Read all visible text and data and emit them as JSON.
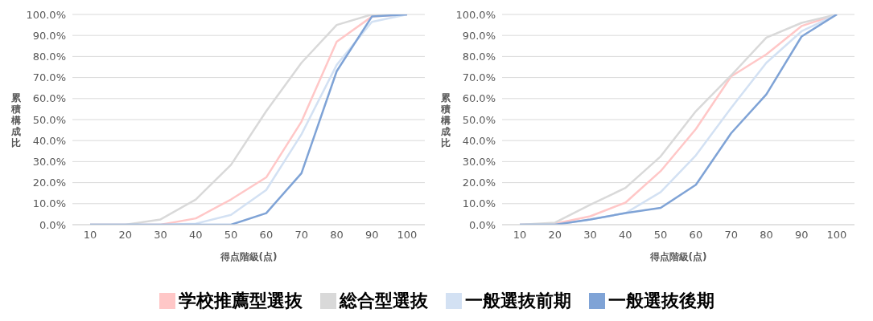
{
  "chart_data": [
    {
      "type": "line",
      "ylabel": "累積構成比",
      "xlabel": "得点階級(点)",
      "categories": [
        "10",
        "20",
        "30",
        "40",
        "50",
        "60",
        "70",
        "80",
        "90",
        "100"
      ],
      "ylim": [
        0,
        100
      ],
      "yticks": [
        {
          "value": 0,
          "label": "0.0%"
        },
        {
          "value": 10,
          "label": "10.0%"
        },
        {
          "value": 20,
          "label": "20.0%"
        },
        {
          "value": 30,
          "label": "30.0%"
        },
        {
          "value": 40,
          "label": "40.0%"
        },
        {
          "value": 50,
          "label": "50.0%"
        },
        {
          "value": 60,
          "label": "60.0%"
        },
        {
          "value": 70,
          "label": "70.0%"
        },
        {
          "value": 80,
          "label": "80.0%"
        },
        {
          "value": 90,
          "label": "90.0%"
        },
        {
          "value": 100,
          "label": "100.0%"
        }
      ],
      "grid": "y",
      "legend": "bottom",
      "marker": "none",
      "series": [
        {
          "name": "学校推薦型選抜",
          "color": "#ffc7c7",
          "values": [
            0,
            0,
            0,
            3,
            12,
            22.5,
            49,
            87,
            99,
            100
          ]
        },
        {
          "name": "総合型選抜",
          "color": "#d9d9d9",
          "values": [
            0,
            0,
            2.5,
            12,
            28.5,
            54,
            77,
            95,
            100,
            100
          ]
        },
        {
          "name": "一般選抜前期",
          "color": "#d3e1f3",
          "values": [
            0,
            0,
            0,
            0.5,
            4.7,
            16.5,
            43,
            76,
            96.5,
            100
          ]
        },
        {
          "name": "一般選抜後期",
          "color": "#7fa3d6",
          "values": [
            0,
            0,
            0,
            0,
            0,
            5.5,
            24.5,
            73,
            99,
            100
          ]
        }
      ]
    },
    {
      "type": "line",
      "ylabel": "累積構成比",
      "xlabel": "得点階級(点)",
      "categories": [
        "10",
        "20",
        "30",
        "40",
        "50",
        "60",
        "70",
        "80",
        "90",
        "100"
      ],
      "ylim": [
        0,
        100
      ],
      "yticks": [
        {
          "value": 0,
          "label": "0.0%"
        },
        {
          "value": 10,
          "label": "10.0%"
        },
        {
          "value": 20,
          "label": "20.0%"
        },
        {
          "value": 30,
          "label": "30.0%"
        },
        {
          "value": 40,
          "label": "40.0%"
        },
        {
          "value": 50,
          "label": "50.0%"
        },
        {
          "value": 60,
          "label": "60.0%"
        },
        {
          "value": 70,
          "label": "70.0%"
        },
        {
          "value": 80,
          "label": "80.0%"
        },
        {
          "value": 90,
          "label": "90.0%"
        },
        {
          "value": 100,
          "label": "100.0%"
        }
      ],
      "grid": "y",
      "marker": "none",
      "series": [
        {
          "color": "#ffc7c7",
          "values": [
            0,
            0.5,
            4,
            10.5,
            25.5,
            45.5,
            70.5,
            81,
            94.5,
            100
          ]
        },
        {
          "color": "#d9d9d9",
          "values": [
            0,
            1,
            9.5,
            17.5,
            32.5,
            54,
            71,
            89,
            96,
            100
          ]
        },
        {
          "color": "#d3e1f3",
          "values": [
            0,
            0,
            2.5,
            5.5,
            15.5,
            33,
            55.5,
            77,
            92,
            100
          ]
        },
        {
          "color": "#7fa3d6",
          "values": [
            0,
            0,
            2.5,
            5.5,
            8,
            19,
            43.5,
            62,
            89.5,
            100
          ]
        }
      ]
    }
  ]
}
